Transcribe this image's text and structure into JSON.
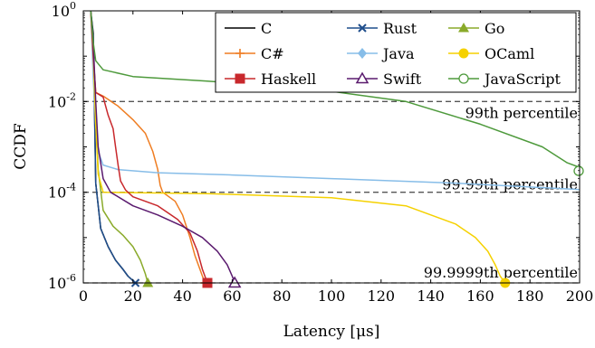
{
  "chart_data": {
    "type": "line",
    "xlabel": "Latency [μs]",
    "ylabel": "CCDF",
    "xlim": [
      0,
      200
    ],
    "ylim_log10": [
      -6,
      0
    ],
    "y_scale": "log",
    "grid": false,
    "legend_placement": "top-right",
    "xticks": [
      "0",
      "20",
      "40",
      "60",
      "80",
      "100",
      "120",
      "140",
      "160",
      "180",
      "200"
    ],
    "yticks": [
      {
        "exp": 0,
        "label": "10^0"
      },
      {
        "exp": -2,
        "label": "10^-2"
      },
      {
        "exp": -4,
        "label": "10^-4"
      },
      {
        "exp": -6,
        "label": "10^-6"
      }
    ],
    "reference_lines": [
      {
        "label": "99th percentile",
        "log10": -2
      },
      {
        "label": "99.99th percentile",
        "log10": -4
      },
      {
        "label": "99.9999th percentile",
        "log10": -6
      }
    ],
    "series": [
      {
        "name": "C",
        "color": "#000000",
        "marker": "none",
        "points": [
          [
            3,
            0
          ],
          [
            4,
            -0.5
          ],
          [
            4.5,
            -2
          ],
          [
            5,
            -3.8
          ],
          [
            7,
            -4.8
          ],
          [
            10,
            -5.2
          ],
          [
            13,
            -5.5
          ],
          [
            16,
            -5.7
          ],
          [
            18,
            -5.85
          ],
          [
            20,
            -5.95
          ],
          [
            21,
            -6
          ]
        ]
      },
      {
        "name": "Rust",
        "color": "#1f4e8c",
        "marker": "x",
        "points": [
          [
            3,
            0
          ],
          [
            4,
            -0.6
          ],
          [
            4.5,
            -2.2
          ],
          [
            5,
            -3.8
          ],
          [
            7,
            -4.8
          ],
          [
            10,
            -5.2
          ],
          [
            13,
            -5.5
          ],
          [
            16,
            -5.7
          ],
          [
            18,
            -5.85
          ],
          [
            20,
            -5.95
          ],
          [
            21,
            -6
          ]
        ]
      },
      {
        "name": "Go",
        "color": "#8aaa2a",
        "marker": "triangle",
        "points": [
          [
            3,
            0
          ],
          [
            4,
            -0.8
          ],
          [
            5,
            -2.2
          ],
          [
            6,
            -3.5
          ],
          [
            8,
            -4.4
          ],
          [
            12,
            -4.75
          ],
          [
            16,
            -4.95
          ],
          [
            20,
            -5.2
          ],
          [
            23,
            -5.5
          ],
          [
            25,
            -5.8
          ],
          [
            26,
            -6
          ]
        ]
      },
      {
        "name": "C#",
        "color": "#ef7d22",
        "marker": "plus",
        "points": [
          [
            3,
            0
          ],
          [
            4,
            -1
          ],
          [
            5,
            -1.8
          ],
          [
            8,
            -1.88
          ],
          [
            14,
            -2.1
          ],
          [
            20,
            -2.4
          ],
          [
            25,
            -2.7
          ],
          [
            28,
            -3.1
          ],
          [
            30,
            -3.5
          ],
          [
            31,
            -3.85
          ],
          [
            32,
            -4
          ],
          [
            37,
            -4.2
          ],
          [
            40,
            -4.5
          ],
          [
            43,
            -5
          ],
          [
            45,
            -5.4
          ],
          [
            47,
            -5.7
          ],
          [
            48,
            -5.85
          ],
          [
            49,
            -6
          ]
        ]
      },
      {
        "name": "Java",
        "color": "#87bde8",
        "marker": "diamond",
        "points": [
          [
            3,
            0
          ],
          [
            4,
            -1.5
          ],
          [
            5,
            -2.5
          ],
          [
            6,
            -3.1
          ],
          [
            8,
            -3.4
          ],
          [
            14,
            -3.5
          ],
          [
            30,
            -3.57
          ],
          [
            60,
            -3.62
          ],
          [
            100,
            -3.7
          ],
          [
            150,
            -3.8
          ],
          [
            200,
            -3.94
          ]
        ]
      },
      {
        "name": "OCaml",
        "color": "#f5d100",
        "marker": "circle",
        "points": [
          [
            3,
            0
          ],
          [
            4,
            -1
          ],
          [
            5,
            -2.5
          ],
          [
            6,
            -3.6
          ],
          [
            8,
            -4
          ],
          [
            50,
            -4.03
          ],
          [
            100,
            -4.12
          ],
          [
            130,
            -4.3
          ],
          [
            150,
            -4.7
          ],
          [
            158,
            -5
          ],
          [
            163,
            -5.3
          ],
          [
            166,
            -5.6
          ],
          [
            168,
            -5.85
          ],
          [
            170,
            -6
          ]
        ]
      },
      {
        "name": "Haskell",
        "color": "#c8282c",
        "marker": "square",
        "points": [
          [
            3,
            0
          ],
          [
            4,
            -1
          ],
          [
            5,
            -1.8
          ],
          [
            8,
            -1.9
          ],
          [
            10,
            -2.3
          ],
          [
            12,
            -2.6
          ],
          [
            13,
            -3
          ],
          [
            14,
            -3.4
          ],
          [
            15,
            -3.75
          ],
          [
            17,
            -3.95
          ],
          [
            20,
            -4.1
          ],
          [
            30,
            -4.3
          ],
          [
            38,
            -4.6
          ],
          [
            43,
            -4.9
          ],
          [
            46,
            -5.3
          ],
          [
            48,
            -5.7
          ],
          [
            50,
            -6
          ]
        ]
      },
      {
        "name": "Swift",
        "color": "#5a1a6e",
        "marker": "triangle-open",
        "points": [
          [
            3,
            0
          ],
          [
            4,
            -0.7
          ],
          [
            5,
            -2
          ],
          [
            6,
            -3
          ],
          [
            8,
            -3.7
          ],
          [
            11,
            -4
          ],
          [
            20,
            -4.3
          ],
          [
            30,
            -4.5
          ],
          [
            40,
            -4.75
          ],
          [
            48,
            -5
          ],
          [
            54,
            -5.3
          ],
          [
            58,
            -5.6
          ],
          [
            60,
            -5.85
          ],
          [
            61,
            -6
          ]
        ]
      },
      {
        "name": "JavaScript",
        "color": "#4e9a3c",
        "marker": "circle-open",
        "points": [
          [
            3,
            0
          ],
          [
            4,
            -0.7
          ],
          [
            5,
            -1.1
          ],
          [
            8,
            -1.3
          ],
          [
            20,
            -1.45
          ],
          [
            50,
            -1.55
          ],
          [
            90,
            -1.7
          ],
          [
            130,
            -2
          ],
          [
            160,
            -2.5
          ],
          [
            185,
            -3
          ],
          [
            195,
            -3.35
          ],
          [
            200,
            -3.45
          ]
        ]
      }
    ]
  }
}
